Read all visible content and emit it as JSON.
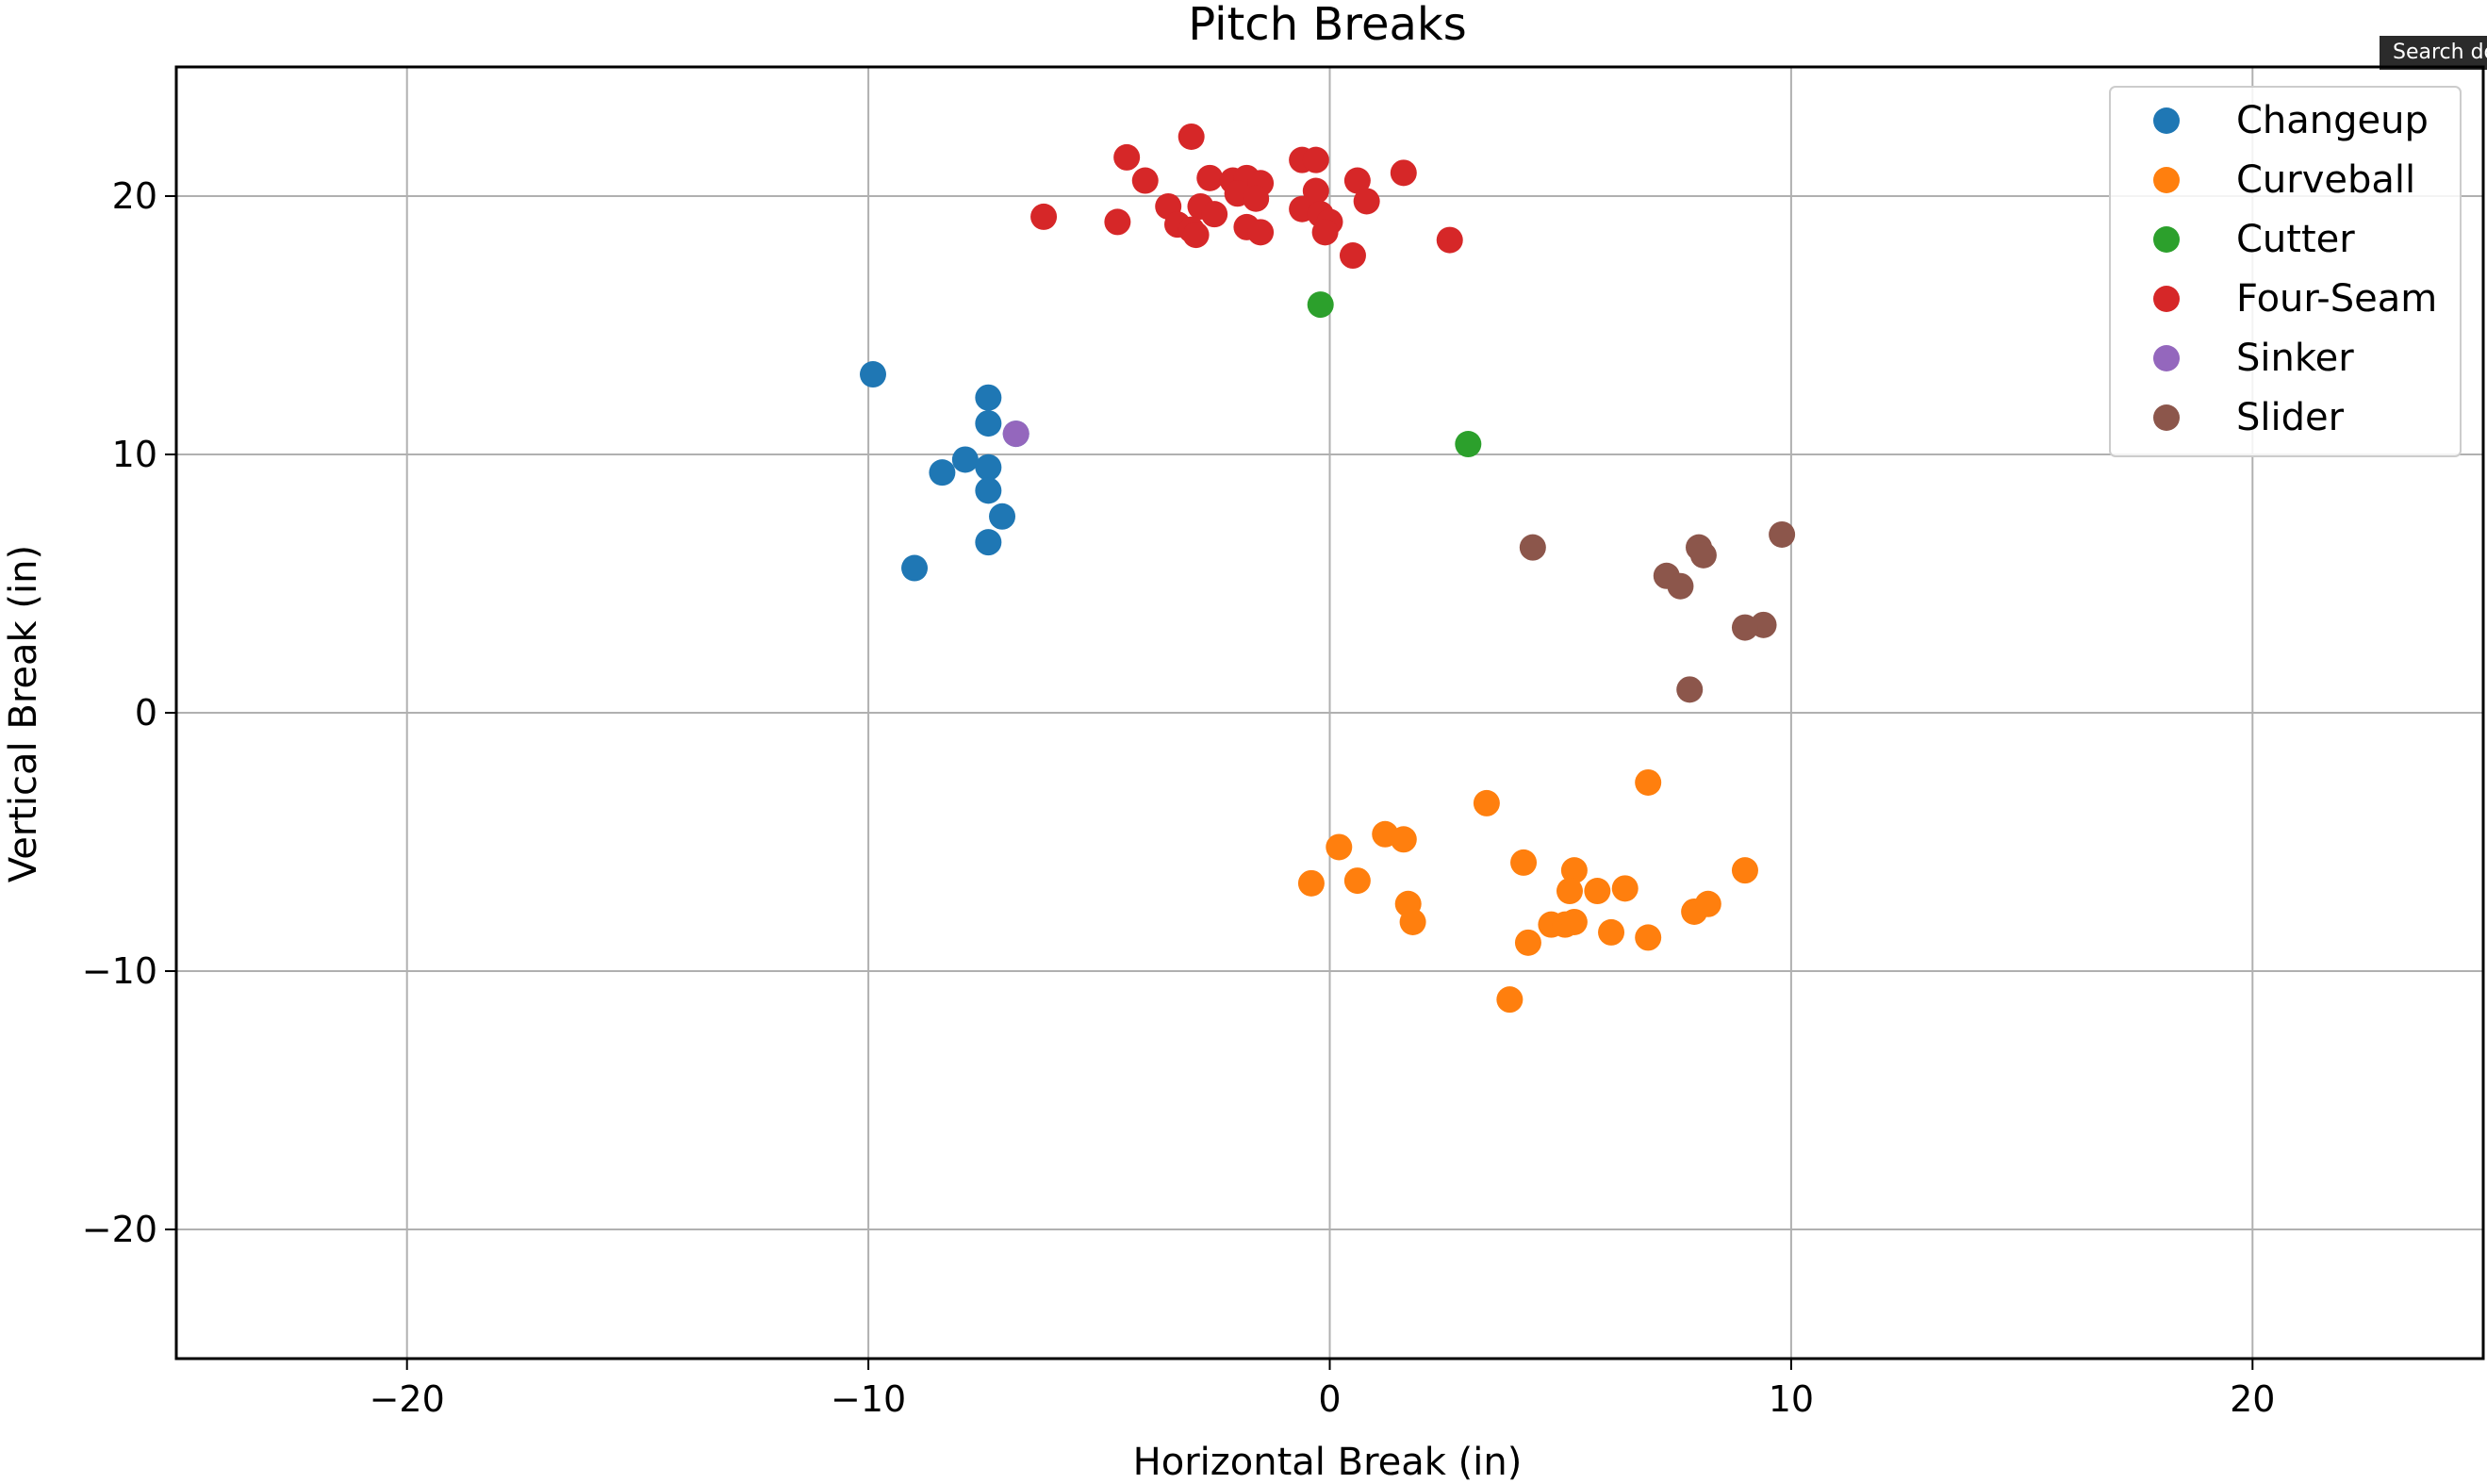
{
  "tooltip": {
    "text": "Search docs"
  },
  "chart_data": {
    "type": "scatter",
    "title": "Pitch Breaks",
    "xlabel": "Horizontal Break (in)",
    "ylabel": "Vertical Break (in)",
    "xlim": [
      -25,
      25
    ],
    "ylim": [
      -25,
      25
    ],
    "xticks": [
      -20,
      -10,
      0,
      10,
      20
    ],
    "yticks": [
      -20,
      -10,
      0,
      10,
      20
    ],
    "grid": true,
    "legend": "top-right",
    "series": [
      {
        "name": "Changeup",
        "color": "#1f77b4",
        "points": [
          [
            -9.9,
            13.1
          ],
          [
            -7.4,
            12.2
          ],
          [
            -7.4,
            11.2
          ],
          [
            -6.8,
            10.8
          ],
          [
            -7.9,
            9.8
          ],
          [
            -8.4,
            9.3
          ],
          [
            -7.4,
            9.5
          ],
          [
            -7.4,
            8.6
          ],
          [
            -7.1,
            7.6
          ],
          [
            -7.4,
            6.6
          ],
          [
            -9.0,
            5.6
          ]
        ]
      },
      {
        "name": "Curveball",
        "color": "#ff7f0e",
        "points": [
          [
            6.9,
            -2.7
          ],
          [
            3.4,
            -3.5
          ],
          [
            1.2,
            -4.7
          ],
          [
            1.6,
            -4.9
          ],
          [
            0.2,
            -5.2
          ],
          [
            4.2,
            -5.8
          ],
          [
            5.3,
            -6.1
          ],
          [
            9.0,
            -6.1
          ],
          [
            -0.4,
            -6.6
          ],
          [
            0.6,
            -6.5
          ],
          [
            5.2,
            -6.9
          ],
          [
            5.8,
            -6.9
          ],
          [
            6.4,
            -6.8
          ],
          [
            1.7,
            -7.4
          ],
          [
            7.9,
            -7.7
          ],
          [
            8.2,
            -7.4
          ],
          [
            1.8,
            -8.1
          ],
          [
            4.8,
            -8.2
          ],
          [
            5.1,
            -8.2
          ],
          [
            5.3,
            -8.1
          ],
          [
            6.1,
            -8.5
          ],
          [
            6.9,
            -8.7
          ],
          [
            4.3,
            -8.9
          ],
          [
            3.9,
            -11.1
          ]
        ]
      },
      {
        "name": "Cutter",
        "color": "#2ca02c",
        "points": [
          [
            -0.2,
            15.8
          ],
          [
            3.0,
            10.4
          ]
        ]
      },
      {
        "name": "Four-Seam",
        "color": "#d62728",
        "points": [
          [
            -3.0,
            22.3
          ],
          [
            -4.4,
            21.5
          ],
          [
            -0.6,
            21.4
          ],
          [
            -0.3,
            21.4
          ],
          [
            -4.0,
            20.6
          ],
          [
            -2.6,
            20.7
          ],
          [
            -2.1,
            20.6
          ],
          [
            -1.8,
            20.7
          ],
          [
            -1.5,
            20.5
          ],
          [
            0.6,
            20.6
          ],
          [
            1.6,
            20.9
          ],
          [
            -0.3,
            20.2
          ],
          [
            -2.0,
            20.1
          ],
          [
            -1.6,
            19.9
          ],
          [
            0.8,
            19.8
          ],
          [
            -6.2,
            19.2
          ],
          [
            -3.5,
            19.6
          ],
          [
            -2.8,
            19.6
          ],
          [
            -2.5,
            19.3
          ],
          [
            -0.6,
            19.5
          ],
          [
            -0.2,
            19.3
          ],
          [
            -4.6,
            19.0
          ],
          [
            -3.3,
            18.9
          ],
          [
            -3.0,
            18.7
          ],
          [
            -2.9,
            18.5
          ],
          [
            -1.8,
            18.8
          ],
          [
            -1.5,
            18.6
          ],
          [
            0.0,
            19.0
          ],
          [
            -0.1,
            18.6
          ],
          [
            2.6,
            18.3
          ],
          [
            0.5,
            17.7
          ]
        ]
      },
      {
        "name": "Sinker",
        "color": "#9467bd",
        "points": [
          [
            -6.8,
            10.8
          ]
        ]
      },
      {
        "name": "Slider",
        "color": "#8c564b",
        "points": [
          [
            9.8,
            6.9
          ],
          [
            4.4,
            6.4
          ],
          [
            8.0,
            6.4
          ],
          [
            8.1,
            6.1
          ],
          [
            7.3,
            5.3
          ],
          [
            7.6,
            4.9
          ],
          [
            9.4,
            3.4
          ],
          [
            9.0,
            3.3
          ],
          [
            7.8,
            0.9
          ]
        ]
      }
    ]
  }
}
